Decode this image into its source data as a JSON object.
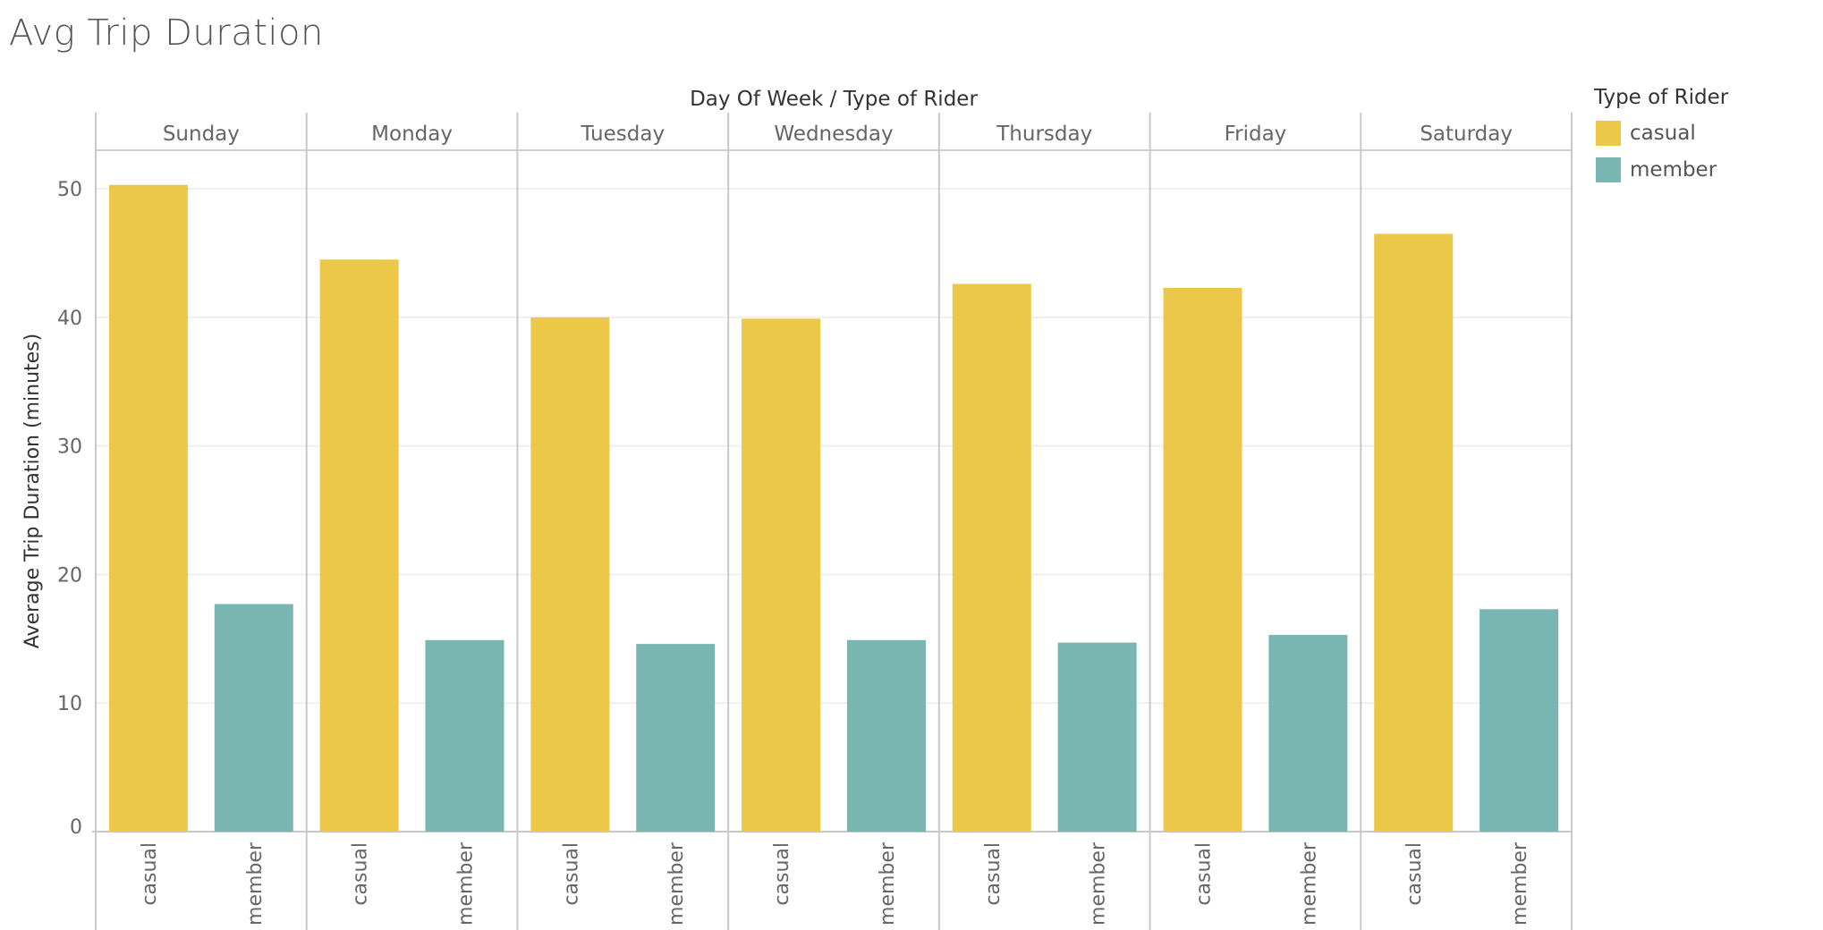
{
  "title": "Avg Trip Duration",
  "chart_data": {
    "type": "bar",
    "title": "Avg Trip Duration",
    "header_label": "Day Of Week  /  Type of Rider",
    "ylabel": "Average Trip Duration (minutes)",
    "ylim": [
      0,
      53
    ],
    "yticks": [
      0,
      10,
      20,
      30,
      40,
      50
    ],
    "grid": true,
    "categories": [
      "Sunday",
      "Monday",
      "Tuesday",
      "Wednesday",
      "Thursday",
      "Friday",
      "Saturday"
    ],
    "subcategories": [
      "casual",
      "member"
    ],
    "series": [
      {
        "name": "casual",
        "color": "#EBC847",
        "values": [
          50.3,
          44.5,
          40.0,
          39.9,
          42.6,
          42.3,
          46.5
        ]
      },
      {
        "name": "member",
        "color": "#79B6B1",
        "values": [
          17.7,
          14.9,
          14.6,
          14.9,
          14.7,
          15.3,
          17.3
        ]
      }
    ],
    "legend": {
      "title": "Type of Rider",
      "position": "right"
    }
  }
}
